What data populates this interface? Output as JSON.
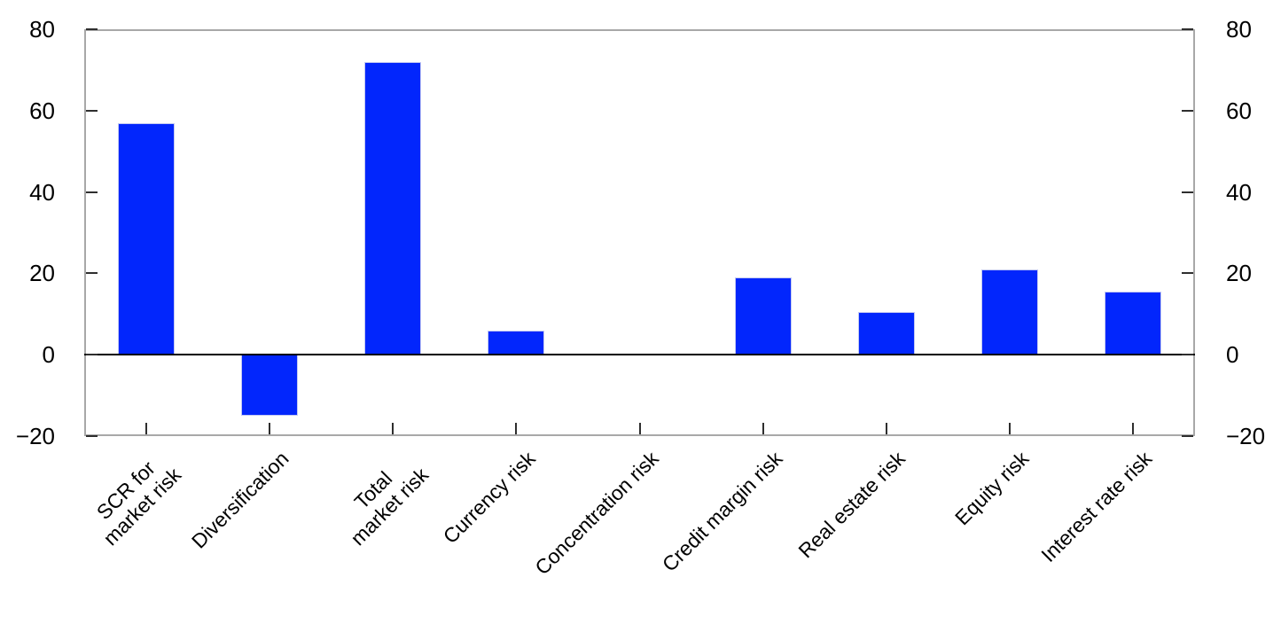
{
  "chart_data": {
    "type": "bar",
    "title": "",
    "xlabel": "",
    "ylabel": "",
    "categories": [
      "SCR for\nmarket risk",
      "Diversification",
      "Total\nmarket risk",
      "Currency risk",
      "Concentration risk",
      "Credit margin risk",
      "Real estate risk",
      "Equity risk",
      "Interest rate risk"
    ],
    "values": [
      57,
      -15,
      72,
      6,
      0,
      19,
      10.5,
      21,
      15.5
    ],
    "ylim": [
      -20,
      80
    ],
    "yticks": [
      80,
      60,
      40,
      20,
      0,
      -20
    ],
    "ytick_labels": [
      "80",
      "60",
      "40",
      "20",
      "0",
      "−20"
    ],
    "dual_y_axis": true,
    "grid": false,
    "legend": "none",
    "zero_baseline": true,
    "colors": {
      "bar_fill": "#0226fc",
      "bar_edge": "#c2c8f2",
      "frame": "#a8a8a8",
      "zero_line": "#000000",
      "tick_mark": "#2e2e2e",
      "text": "#000000",
      "background": "#ffffff"
    }
  }
}
